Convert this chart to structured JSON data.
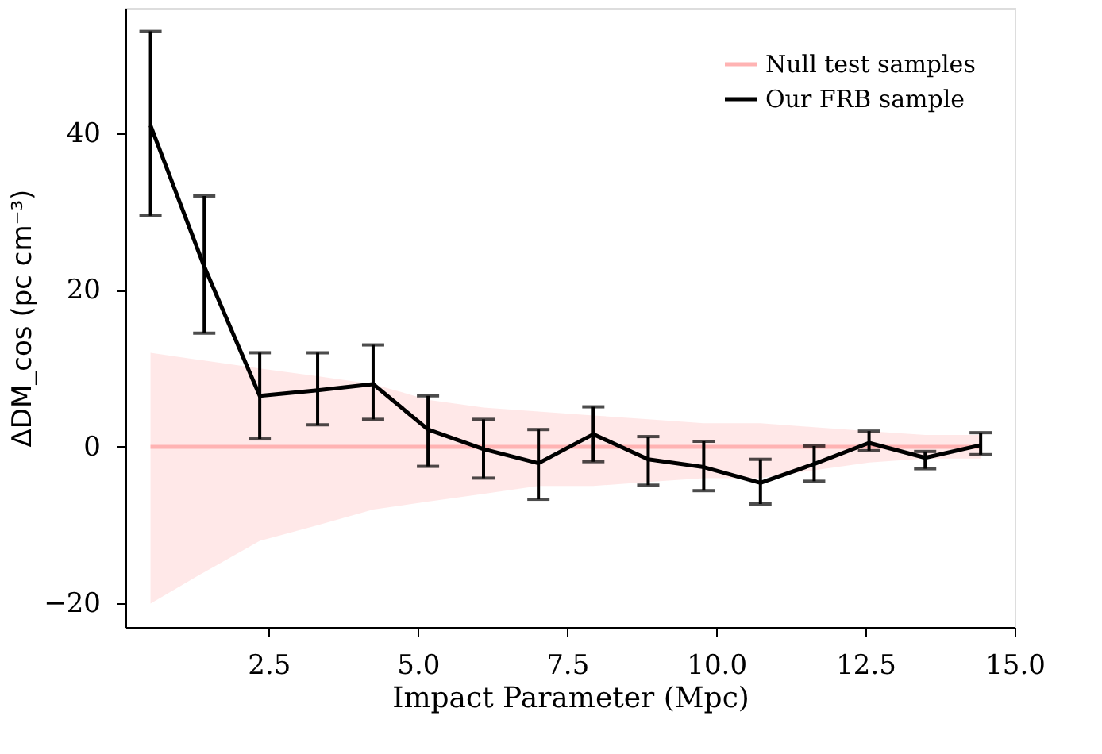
{
  "chart_data": {
    "type": "line",
    "xlabel": "Impact Parameter (Mpc)",
    "ylabel": "ΔDM_cos (pc cm⁻³)",
    "x": [
      0.52,
      1.42,
      2.35,
      3.32,
      4.25,
      5.17,
      6.1,
      7.02,
      7.94,
      8.86,
      9.79,
      10.74,
      11.64,
      12.56,
      13.5,
      14.43
    ],
    "series": [
      {
        "name": "Null test samples",
        "color": "#ffb3b3",
        "values": [
          0,
          0,
          0,
          0,
          0,
          0,
          0,
          0,
          0,
          0,
          0,
          0,
          0,
          0,
          0,
          0
        ],
        "lower": [
          -20,
          -16,
          -12,
          -10,
          -8,
          -7,
          -6,
          -5,
          -5,
          -4.5,
          -4,
          -4,
          -3,
          -2,
          -1.5,
          -1.5
        ],
        "upper": [
          12,
          11,
          10,
          9,
          8,
          6,
          5,
          4.5,
          4,
          3.5,
          3,
          3,
          2.5,
          2,
          1.5,
          1.5
        ]
      },
      {
        "name": "Our FRB sample",
        "color": "#000000",
        "values": [
          41,
          23,
          6.5,
          7.2,
          8,
          2.2,
          -0.3,
          -2.1,
          1.6,
          -1.6,
          -2.6,
          -4.6,
          -2.2,
          0.5,
          -1.4,
          0.2
        ],
        "errors": [
          [
            29.5,
            53
          ],
          [
            14.5,
            32
          ],
          [
            1,
            12
          ],
          [
            2.8,
            12
          ],
          [
            3.5,
            13
          ],
          [
            -2.5,
            6.5
          ],
          [
            -4,
            3.5
          ],
          [
            -6.7,
            2.2
          ],
          [
            -1.9,
            5.1
          ],
          [
            -4.9,
            1.3
          ],
          [
            -5.6,
            0.7
          ],
          [
            -7.3,
            -1.6
          ],
          [
            -4.4,
            0.1
          ],
          [
            -0.5,
            2.0
          ],
          [
            -2.8,
            -0.6
          ],
          [
            -1.0,
            1.8
          ]
        ]
      }
    ],
    "xlim": [
      0.1,
      15.0
    ],
    "ylim": [
      -23,
      56
    ],
    "xticks": [
      {
        "value": 2.5,
        "label": "2.5"
      },
      {
        "value": 5,
        "label": "5.0"
      },
      {
        "value": 7.5,
        "label": "7.5"
      },
      {
        "value": 10,
        "label": "10.0"
      },
      {
        "value": 12.5,
        "label": "12.5"
      },
      {
        "value": 15,
        "label": "15.0"
      }
    ],
    "yticks": [
      -20,
      0,
      20,
      40
    ],
    "grid": false,
    "legend": "top right",
    "line_style": "solid"
  }
}
